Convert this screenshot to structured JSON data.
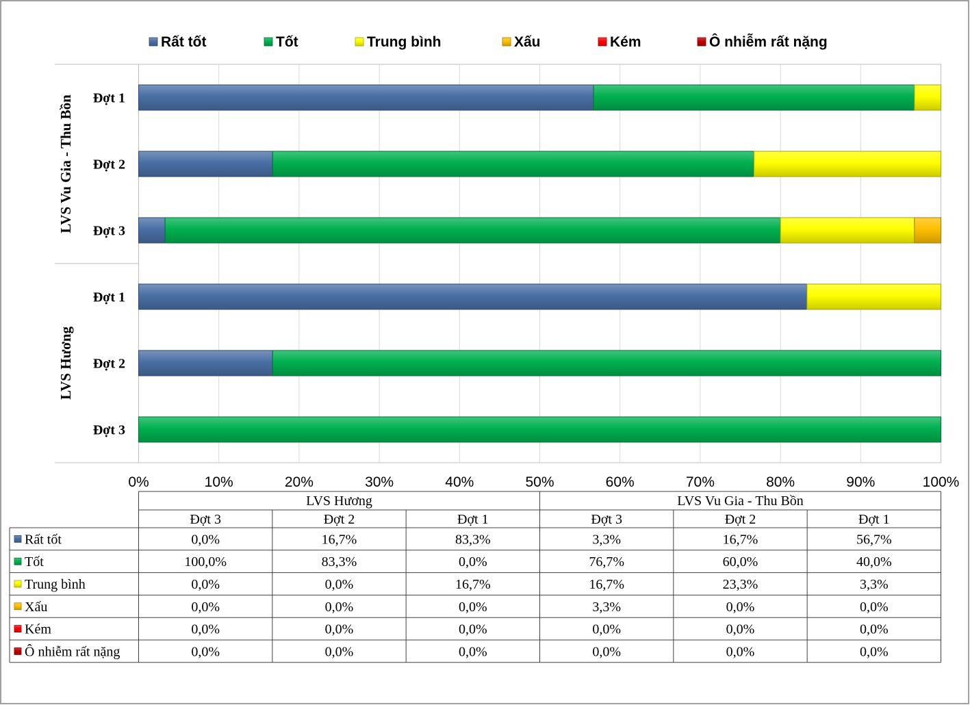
{
  "chart_data": {
    "type": "bar",
    "orientation": "horizontal",
    "stacked": "percent",
    "groups": [
      {
        "name": "LVS Vu Gia  - Thu Bồn",
        "categories": [
          "Đợt 1",
          "Đợt 2",
          "Đợt 3"
        ]
      },
      {
        "name": "LVS Hương",
        "categories": [
          "Đợt 1",
          "Đợt 2",
          "Đợt 3"
        ]
      }
    ],
    "series": [
      {
        "name": "Rất tốt",
        "color": "#4a6fa5",
        "values": {
          "LVS Vu Gia  - Thu Bồn": [
            56.7,
            16.7,
            3.3
          ],
          "LVS Hương": [
            83.3,
            16.7,
            0.0
          ]
        }
      },
      {
        "name": "Tốt",
        "color": "#00b050",
        "values": {
          "LVS Vu Gia  - Thu Bồn": [
            40.0,
            60.0,
            76.7
          ],
          "LVS Hương": [
            0.0,
            83.3,
            100.0
          ]
        }
      },
      {
        "name": "Trung bình",
        "color": "#ffff00",
        "values": {
          "LVS Vu Gia  - Thu Bồn": [
            3.3,
            23.3,
            16.7
          ],
          "LVS Hương": [
            16.7,
            0.0,
            0.0
          ]
        }
      },
      {
        "name": "Xấu",
        "color": "#ffc000",
        "values": {
          "LVS Vu Gia  - Thu Bồn": [
            0.0,
            0.0,
            3.3
          ],
          "LVS Hương": [
            0.0,
            0.0,
            0.0
          ]
        }
      },
      {
        "name": "Kém",
        "color": "#ff0000",
        "values": {
          "LVS Vu Gia  - Thu Bồn": [
            0.0,
            0.0,
            0.0
          ],
          "LVS Hương": [
            0.0,
            0.0,
            0.0
          ]
        }
      },
      {
        "name": "Ô nhiễm rất nặng",
        "color": "#c00000",
        "values": {
          "LVS Vu Gia  - Thu Bồn": [
            0.0,
            0.0,
            0.0
          ],
          "LVS Hương": [
            0.0,
            0.0,
            0.0
          ]
        }
      }
    ],
    "x_ticks": [
      "0%",
      "10%",
      "20%",
      "30%",
      "40%",
      "50%",
      "60%",
      "70%",
      "80%",
      "90%",
      "100%"
    ],
    "xlim": [
      0,
      100
    ],
    "grid": true,
    "legend": "top",
    "data_table": {
      "groups": [
        "LVS Hương",
        "LVS Vu Gia - Thu Bồn"
      ],
      "columns": [
        "Đợt 3",
        "Đợt 2",
        "Đợt 1",
        "Đợt 3",
        "Đợt 2",
        "Đợt 1"
      ],
      "rows": [
        {
          "label": "Rất tốt",
          "cells": [
            "0,0%",
            "16,7%",
            "83,3%",
            "3,3%",
            "16,7%",
            "56,7%"
          ]
        },
        {
          "label": "Tốt",
          "cells": [
            "100,0%",
            "83,3%",
            "0,0%",
            "76,7%",
            "60,0%",
            "40,0%"
          ]
        },
        {
          "label": "Trung bình",
          "cells": [
            "0,0%",
            "0,0%",
            "16,7%",
            "16,7%",
            "23,3%",
            "3,3%"
          ]
        },
        {
          "label": "Xấu",
          "cells": [
            "0,0%",
            "0,0%",
            "0,0%",
            "3,3%",
            "0,0%",
            "0,0%"
          ]
        },
        {
          "label": "Kém",
          "cells": [
            "0,0%",
            "0,0%",
            "0,0%",
            "0,0%",
            "0,0%",
            "0,0%"
          ]
        },
        {
          "label": "Ô nhiễm rất nặng",
          "cells": [
            "0,0%",
            "0,0%",
            "0,0%",
            "0,0%",
            "0,0%",
            "0,0%"
          ]
        }
      ]
    }
  }
}
